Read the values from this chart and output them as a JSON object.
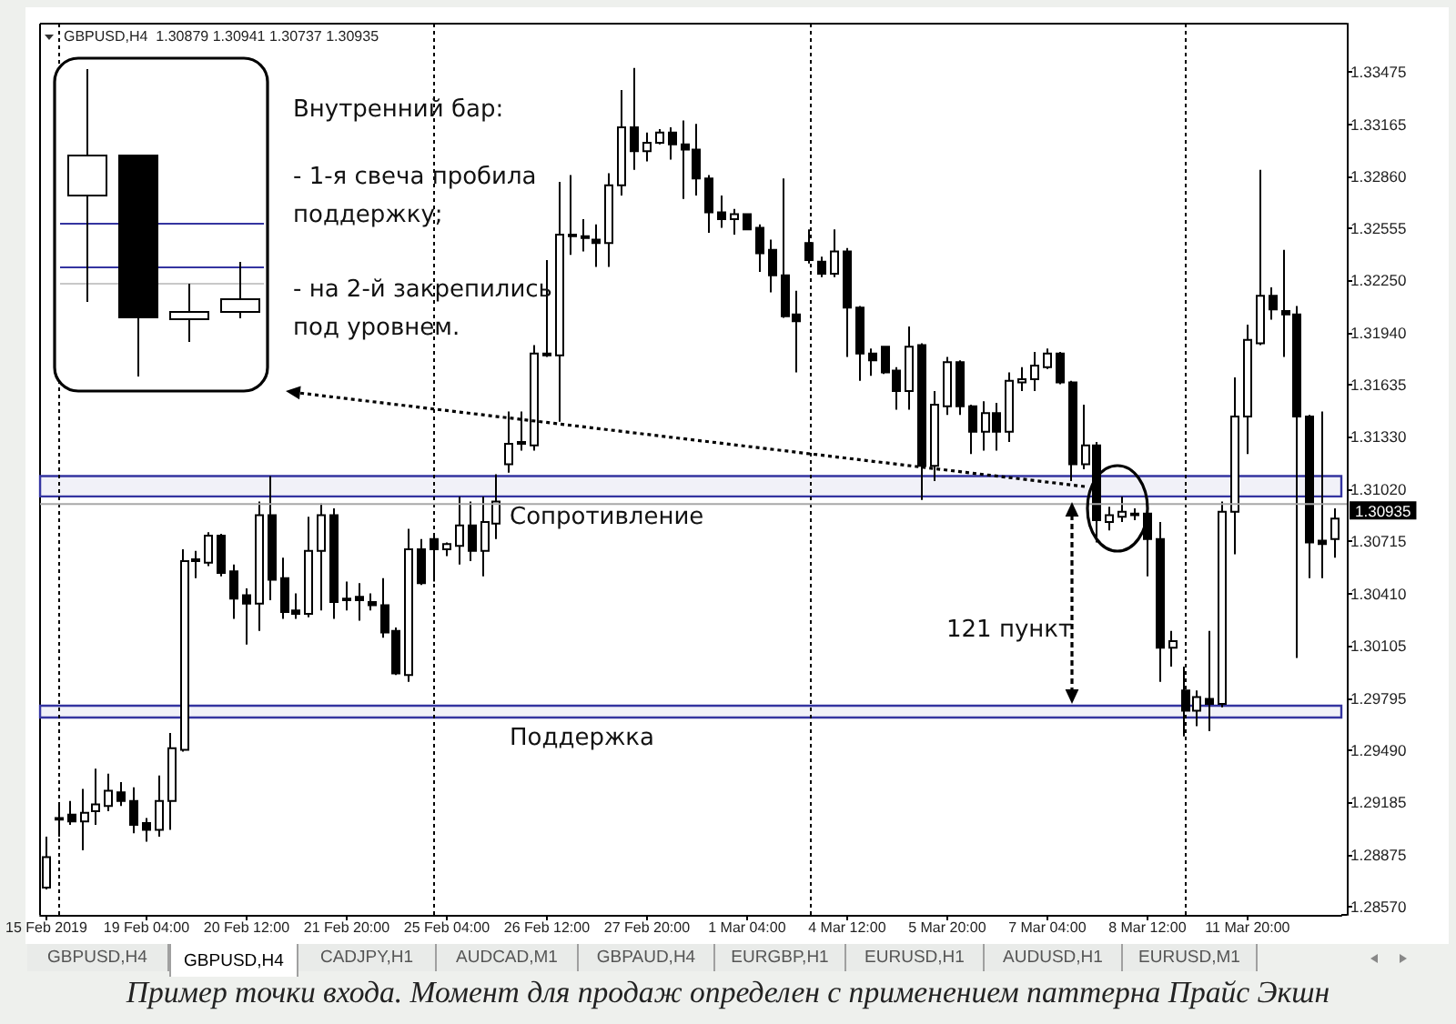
{
  "chart_data": {
    "type": "candlestick",
    "title": "GBPUSD,H4  1.30879 1.30941 1.30737 1.30935",
    "color": "#000000",
    "grid": "x",
    "categories": [
      "15 Feb 2019",
      null,
      null,
      null,
      null,
      null,
      null,
      null,
      "19 Feb 04:00",
      null,
      null,
      null,
      null,
      null,
      null,
      null,
      "20 Feb 12:00",
      null,
      null,
      null,
      null,
      null,
      null,
      null,
      "21 Feb 20:00",
      null,
      null,
      null,
      null,
      null,
      null,
      null,
      "25 Feb 04:00",
      null,
      null,
      null,
      null,
      null,
      null,
      null,
      "26 Feb 12:00",
      null,
      null,
      null,
      null,
      null,
      null,
      null,
      "27 Feb 20:00",
      null,
      null,
      null,
      null,
      null,
      null,
      null,
      "1 Mar 04:00",
      null,
      null,
      null,
      null,
      null,
      null,
      null,
      "4 Mar 12:00",
      null,
      null,
      null,
      null,
      null,
      null,
      null,
      "5 Mar 20:00",
      null,
      null,
      null,
      null,
      null,
      null,
      null,
      "7 Mar 04:00",
      null,
      null,
      null,
      null,
      null,
      null,
      null,
      "8 Mar 12:00",
      null,
      null,
      null,
      null,
      null,
      null,
      null,
      "11 Mar 20:00",
      null,
      null,
      null,
      null,
      null,
      null,
      null
    ],
    "ohlc": [
      [
        1.2868,
        1.2898,
        1.2867,
        1.2886
      ],
      [
        1.2908,
        1.2918,
        1.2898,
        1.2909
      ],
      [
        1.2911,
        1.2919,
        1.2905,
        1.2907
      ],
      [
        1.2907,
        1.2926,
        1.289,
        1.2912
      ],
      [
        1.2913,
        1.2938,
        1.2905,
        1.2917
      ],
      [
        1.2916,
        1.2935,
        1.2913,
        1.2925
      ],
      [
        1.2924,
        1.293,
        1.2916,
        1.2919
      ],
      [
        1.2919,
        1.2927,
        1.29,
        1.2905
      ],
      [
        1.2906,
        1.2909,
        1.2895,
        1.2902
      ],
      [
        1.2902,
        1.2934,
        1.2898,
        1.2919
      ],
      [
        1.2919,
        1.2959,
        1.2902,
        1.295
      ],
      [
        1.2949,
        1.3067,
        1.2948,
        1.306
      ],
      [
        1.306,
        1.3066,
        1.305,
        1.3061
      ],
      [
        1.3059,
        1.3077,
        1.3057,
        1.3075
      ],
      [
        1.3075,
        1.3076,
        1.3051,
        1.3053
      ],
      [
        1.3054,
        1.3058,
        1.3026,
        1.3038
      ],
      [
        1.304,
        1.3044,
        1.3011,
        1.3035
      ],
      [
        1.3035,
        1.3095,
        1.3019,
        1.3087
      ],
      [
        1.3087,
        1.311,
        1.3037,
        1.3049
      ],
      [
        1.305,
        1.3062,
        1.3026,
        1.303
      ],
      [
        1.3031,
        1.3041,
        1.3026,
        1.3029
      ],
      [
        1.3029,
        1.3086,
        1.3027,
        1.3066
      ],
      [
        1.3066,
        1.3094,
        1.3031,
        1.3087
      ],
      [
        1.3087,
        1.3091,
        1.3026,
        1.3036
      ],
      [
        1.3037,
        1.3048,
        1.3031,
        1.3038
      ],
      [
        1.3039,
        1.3047,
        1.3025,
        1.3037
      ],
      [
        1.3036,
        1.3041,
        1.3031,
        1.3034
      ],
      [
        1.3034,
        1.305,
        1.3015,
        1.3018
      ],
      [
        1.3019,
        1.3021,
        1.2993,
        1.2994
      ],
      [
        1.2993,
        1.3079,
        1.2989,
        1.3067
      ],
      [
        1.3067,
        1.3073,
        1.3046,
        1.3047
      ],
      [
        1.3073,
        1.3075,
        1.3048,
        1.3067
      ],
      [
        1.3067,
        1.3071,
        1.3063,
        1.307
      ],
      [
        1.3069,
        1.3098,
        1.3058,
        1.3081
      ],
      [
        1.3081,
        1.3095,
        1.306,
        1.3066
      ],
      [
        1.3066,
        1.3098,
        1.3051,
        1.3083
      ],
      [
        1.3082,
        1.3111,
        1.3073,
        1.3095
      ],
      [
        1.3117,
        1.3148,
        1.3112,
        1.3129
      ],
      [
        1.3129,
        1.3148,
        1.3125,
        1.313
      ],
      [
        1.3128,
        1.3187,
        1.3125,
        1.3182
      ],
      [
        1.3182,
        1.3237,
        1.318,
        1.3181
      ],
      [
        1.3181,
        1.3283,
        1.3142,
        1.3252
      ],
      [
        1.3252,
        1.3287,
        1.324,
        1.3251
      ],
      [
        1.325,
        1.3261,
        1.3242,
        1.3251
      ],
      [
        1.3249,
        1.3258,
        1.3233,
        1.3247
      ],
      [
        1.3247,
        1.3288,
        1.3233,
        1.3281
      ],
      [
        1.3281,
        1.3337,
        1.3275,
        1.3315
      ],
      [
        1.3315,
        1.335,
        1.329,
        1.3301
      ],
      [
        1.3301,
        1.3312,
        1.3295,
        1.3306
      ],
      [
        1.3306,
        1.3314,
        1.3305,
        1.3312
      ],
      [
        1.3312,
        1.3315,
        1.3296,
        1.3305
      ],
      [
        1.3305,
        1.3319,
        1.3273,
        1.3302
      ],
      [
        1.3302,
        1.3317,
        1.3275,
        1.3285
      ],
      [
        1.3285,
        1.3287,
        1.3253,
        1.3265
      ],
      [
        1.3265,
        1.3275,
        1.3256,
        1.3261
      ],
      [
        1.3261,
        1.3267,
        1.3252,
        1.3264
      ],
      [
        1.3264,
        1.3264,
        1.3255,
        1.3255
      ],
      [
        1.3256,
        1.3258,
        1.323,
        1.3241
      ],
      [
        1.3243,
        1.3249,
        1.3218,
        1.3228
      ],
      [
        1.3228,
        1.3285,
        1.3203,
        1.3204
      ],
      [
        1.3205,
        1.3219,
        1.3171,
        1.3201
      ],
      [
        1.3247,
        1.3255,
        1.3235,
        1.3237
      ],
      [
        1.3236,
        1.3239,
        1.3227,
        1.3229
      ],
      [
        1.3229,
        1.3255,
        1.3227,
        1.3242
      ],
      [
        1.3242,
        1.3244,
        1.318,
        1.3209
      ],
      [
        1.3209,
        1.321,
        1.3166,
        1.3182
      ],
      [
        1.3182,
        1.3185,
        1.3169,
        1.3178
      ],
      [
        1.3186,
        1.3186,
        1.317,
        1.3171
      ],
      [
        1.3172,
        1.3174,
        1.3149,
        1.316
      ],
      [
        1.316,
        1.3198,
        1.3149,
        1.3186
      ],
      [
        1.3187,
        1.3188,
        1.3096,
        1.3116
      ],
      [
        1.3116,
        1.316,
        1.3107,
        1.3152
      ],
      [
        1.3151,
        1.318,
        1.3146,
        1.3177
      ],
      [
        1.3177,
        1.3178,
        1.3146,
        1.3151
      ],
      [
        1.3151,
        1.3152,
        1.3123,
        1.3136
      ],
      [
        1.3136,
        1.3154,
        1.3125,
        1.3147
      ],
      [
        1.3147,
        1.3153,
        1.3125,
        1.3136
      ],
      [
        1.3136,
        1.3171,
        1.313,
        1.3166
      ],
      [
        1.3165,
        1.3174,
        1.316,
        1.3167
      ],
      [
        1.3167,
        1.3183,
        1.316,
        1.3175
      ],
      [
        1.3174,
        1.3185,
        1.3173,
        1.3182
      ],
      [
        1.3182,
        1.3183,
        1.3164,
        1.3165
      ],
      [
        1.3165,
        1.3166,
        1.3107,
        1.3117
      ],
      [
        1.3117,
        1.3152,
        1.3114,
        1.3128
      ],
      [
        1.3128,
        1.313,
        1.3071,
        1.3084
      ],
      [
        1.3083,
        1.3092,
        1.3078,
        1.3087
      ],
      [
        1.3086,
        1.3098,
        1.3083,
        1.3089
      ],
      [
        1.3088,
        1.3091,
        1.3084,
        1.3087
      ],
      [
        1.3088,
        1.3089,
        1.3051,
        1.3073
      ],
      [
        1.3073,
        1.3083,
        1.2989,
        1.3009
      ],
      [
        1.3009,
        1.3019,
        1.2998,
        1.3013
      ],
      [
        1.2984,
        1.2998,
        1.2957,
        1.2972
      ],
      [
        1.2972,
        1.2984,
        1.2963,
        1.298
      ],
      [
        1.2979,
        1.3019,
        1.296,
        1.2976
      ],
      [
        1.2976,
        1.3095,
        1.2974,
        1.3089
      ],
      [
        1.3089,
        1.3168,
        1.3064,
        1.3145
      ],
      [
        1.3145,
        1.3199,
        1.3123,
        1.319
      ],
      [
        1.3188,
        1.329,
        1.3187,
        1.3216
      ],
      [
        1.3216,
        1.3221,
        1.3202,
        1.3208
      ],
      [
        1.3207,
        1.3243,
        1.318,
        1.3205
      ],
      [
        1.3205,
        1.321,
        1.3003,
        1.3145
      ],
      [
        1.3145,
        1.3146,
        1.305,
        1.3071
      ],
      [
        1.3072,
        1.3148,
        1.305,
        1.307
      ],
      [
        1.3073,
        1.3091,
        1.3062,
        1.3085
      ]
    ],
    "ylim": [
      1.2852,
      1.3376
    ],
    "yticks": [
      {
        "value": 1.2857,
        "label": "1.28570"
      },
      1.28875,
      1.29185,
      {
        "value": 1.2949,
        "label": "1.29490"
      },
      1.29795,
      1.30105,
      {
        "value": 1.3041,
        "label": "1.30410"
      },
      1.30715,
      {
        "value": 1.3102,
        "label": "1.31020"
      },
      {
        "value": 1.3133,
        "label": "1.31330"
      },
      1.31635,
      {
        "value": 1.3194,
        "label": "1.31940"
      },
      {
        "value": 1.3225,
        "label": "1.32250"
      },
      1.32555,
      {
        "value": 1.3286,
        "label": "1.32860"
      },
      1.33165,
      1.33475
    ],
    "ref_lines": [
      {
        "axis": "y",
        "value": 1.30935,
        "label": "1.30935",
        "color": "#a8a8a8"
      }
    ],
    "bands": [
      {
        "axis": "y",
        "from": 1.3098,
        "to": 1.311,
        "label": "Сопротивление",
        "color": "#3434a0"
      },
      {
        "axis": "y",
        "from": 1.2968,
        "to": 1.2975,
        "label": "Поддержка",
        "color": "#3434a0"
      }
    ],
    "annotations": [
      "Внутренний бар:",
      "- 1-я свеча пробила поддержку;",
      "- на 2-й закрепились под уровнем.",
      "121 пункт",
      "Пример точки входа. Момент для продаж определен с применением паттерна Прайс Экшн",
      "GBPUSD,H4",
      "GBPUSD,H4",
      "CADJPY,H1",
      "AUDCAD,M1",
      "GBPAUD,H4",
      "EURGBP,H1",
      "EURUSD,H1",
      "AUDUSD,H1",
      "EURUSD,M1"
    ]
  }
}
